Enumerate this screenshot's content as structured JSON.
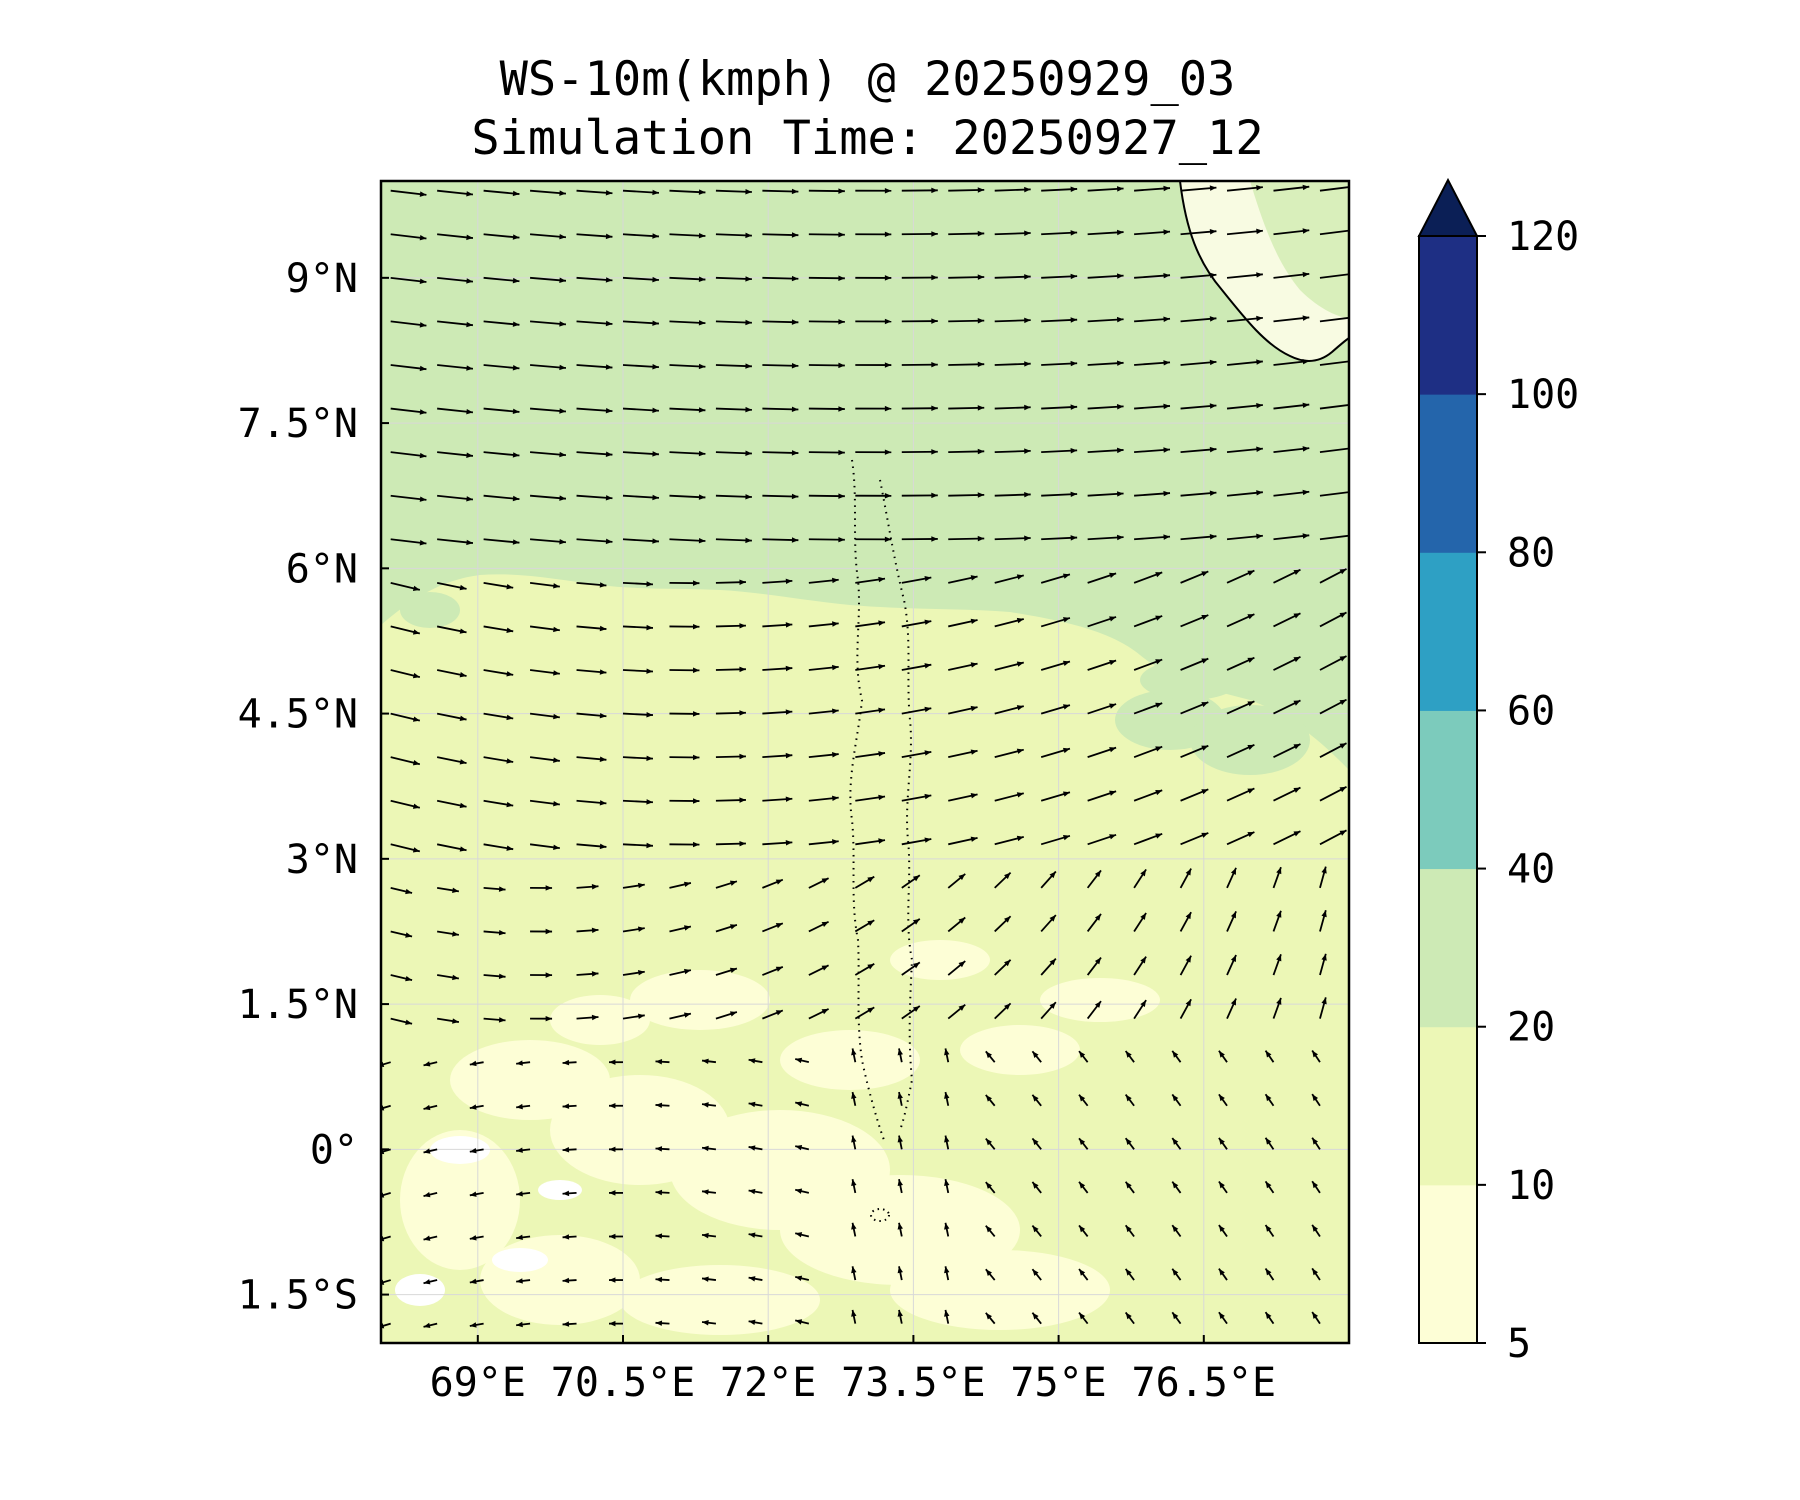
{
  "title": {
    "line1": "WS-10m(kmph) @ 20250929_03",
    "line2": "Simulation Time: 20250927_12"
  },
  "map": {
    "variable": "10 m wind speed",
    "units": "kmph",
    "lon_range": [
      68.0,
      78.0
    ],
    "lat_range": [
      -2.0,
      10.0
    ],
    "lon_ticks": [
      {
        "value": 69.0,
        "label": "69°E"
      },
      {
        "value": 70.5,
        "label": "70.5°E"
      },
      {
        "value": 72.0,
        "label": "72°E"
      },
      {
        "value": 73.5,
        "label": "73.5°E"
      },
      {
        "value": 75.0,
        "label": "75°E"
      },
      {
        "value": 76.5,
        "label": "76.5°E"
      }
    ],
    "lat_ticks": [
      {
        "value": 9.0,
        "label": "9°N"
      },
      {
        "value": 7.5,
        "label": "7.5°N"
      },
      {
        "value": 6.0,
        "label": "6°N"
      },
      {
        "value": 4.5,
        "label": "4.5°N"
      },
      {
        "value": 3.0,
        "label": "3°N"
      },
      {
        "value": 1.5,
        "label": "1.5°N"
      },
      {
        "value": 0.0,
        "label": "0°"
      },
      {
        "value": -1.5,
        "label": "1.5°S"
      }
    ]
  },
  "colorbar": {
    "levels": [
      5,
      10,
      20,
      40,
      60,
      80,
      100,
      120
    ],
    "colors": [
      "#fdfed6",
      "#ecf7b6",
      "#cdeab5",
      "#7ccbbc",
      "#2ea0c4",
      "#2465ab",
      "#1e2f84"
    ],
    "extend_color": "#0b1f56",
    "labels": [
      "5",
      "10",
      "20",
      "40",
      "60",
      "80",
      "100",
      "120"
    ]
  },
  "colors": {
    "land": "#ffffff",
    "coast": "#000000",
    "grid": "#d8d8d8",
    "arrow": "#000000"
  }
}
